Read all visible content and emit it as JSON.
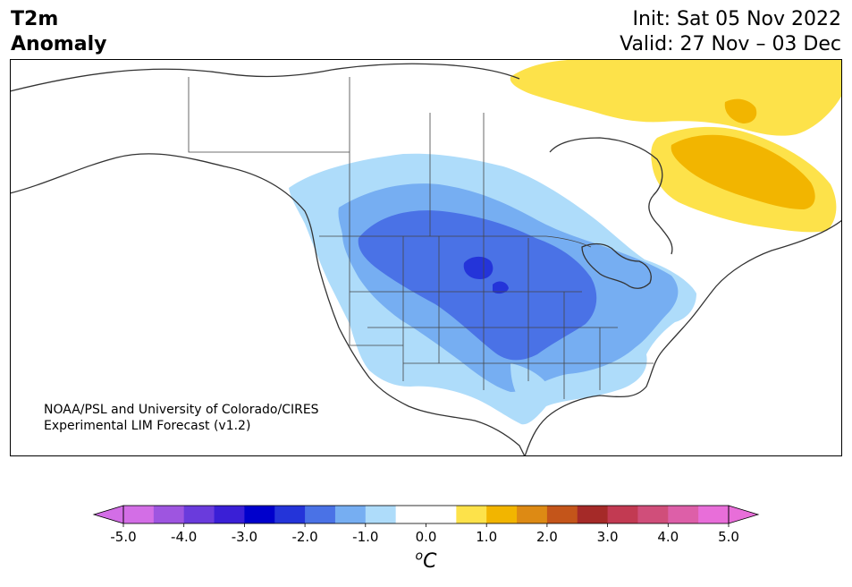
{
  "header": {
    "title_line1": "T2m",
    "title_line2": "Anomaly",
    "init": "Init: Sat 05 Nov 2022",
    "valid": "Valid: 27 Nov – 03 Dec"
  },
  "credit": {
    "line1": "NOAA/PSL and University of Colorado/CIRES",
    "line2": "Experimental LIM Forecast (v1.2)"
  },
  "colorbar": {
    "unit_sup": "o",
    "unit_main": "C",
    "tick_labels": [
      "-5.0",
      "-4.0",
      "-3.0",
      "-2.0",
      "-1.0",
      "0.0",
      "1.0",
      "2.0",
      "3.0",
      "4.0",
      "5.0"
    ],
    "bin_colors": [
      "#d36ee6",
      "#9e55e0",
      "#6a3bdc",
      "#3a1fd6",
      "#0000cc",
      "#2434d9",
      "#4a72e6",
      "#76aef2",
      "#aedcfa",
      "#ffffff",
      "#ffffff",
      "#fde24a",
      "#f2b500",
      "#dd8a14",
      "#c4551a",
      "#a52a28",
      "#c23a52",
      "#d04e7a",
      "#dd5fa8",
      "#e86ed9"
    ],
    "extend_low_color": "#d36ee6",
    "extend_high_color": "#e86ed9"
  }
}
